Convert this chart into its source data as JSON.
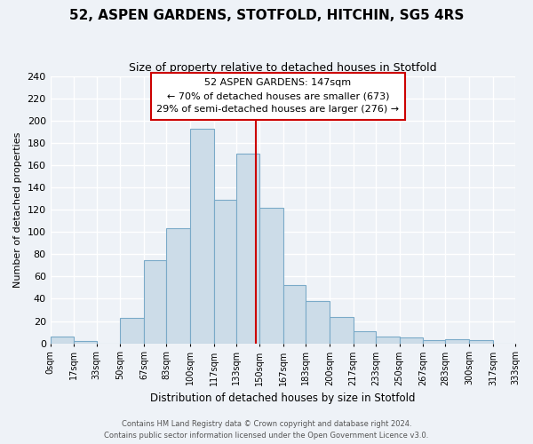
{
  "title": "52, ASPEN GARDENS, STOTFOLD, HITCHIN, SG5 4RS",
  "subtitle": "Size of property relative to detached houses in Stotfold",
  "xlabel": "Distribution of detached houses by size in Stotfold",
  "ylabel": "Number of detached properties",
  "bin_edges": [
    0,
    17,
    33,
    50,
    67,
    83,
    100,
    117,
    133,
    150,
    167,
    183,
    200,
    217,
    233,
    250,
    267,
    283,
    300,
    317,
    333
  ],
  "bar_heights": [
    6,
    2,
    0,
    23,
    75,
    103,
    193,
    129,
    170,
    122,
    52,
    38,
    24,
    11,
    6,
    5,
    3,
    4,
    3,
    0
  ],
  "bar_color": "#ccdce8",
  "bar_edge_color": "#7aaac8",
  "property_line_x": 147,
  "property_line_color": "#cc0000",
  "annotation_title": "52 ASPEN GARDENS: 147sqm",
  "annotation_line1": "← 70% of detached houses are smaller (673)",
  "annotation_line2": "29% of semi-detached houses are larger (276) →",
  "annotation_box_color": "white",
  "annotation_box_edge_color": "#cc0000",
  "ylim": [
    0,
    240
  ],
  "tick_labels": [
    "0sqm",
    "17sqm",
    "33sqm",
    "50sqm",
    "67sqm",
    "83sqm",
    "100sqm",
    "117sqm",
    "133sqm",
    "150sqm",
    "167sqm",
    "183sqm",
    "200sqm",
    "217sqm",
    "233sqm",
    "250sqm",
    "267sqm",
    "283sqm",
    "300sqm",
    "317sqm",
    "333sqm"
  ],
  "footer_line1": "Contains HM Land Registry data © Crown copyright and database right 2024.",
  "footer_line2": "Contains public sector information licensed under the Open Government Licence v3.0.",
  "background_color": "#eef2f7",
  "grid_color": "#ffffff"
}
